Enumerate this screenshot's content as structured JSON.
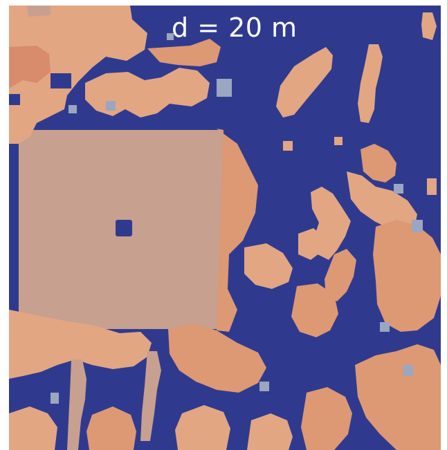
{
  "caption": "d = 20 m",
  "colors": {
    "background_blue": "#2f3a8f",
    "orange_light": "#e2a683",
    "orange_mid": "#dd9874",
    "orange_dark": "#d88c6b",
    "tan": "#c7a08f",
    "grey_blue": "#9ba6c0"
  }
}
